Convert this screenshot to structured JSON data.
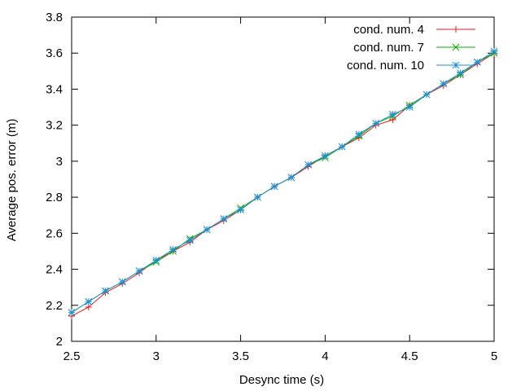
{
  "chart_data": {
    "type": "line",
    "title": "",
    "xlabel": "Desync time (s)",
    "ylabel": "Average pos. error (m)",
    "xlim": [
      2.5,
      5
    ],
    "ylim": [
      2,
      3.8
    ],
    "xticks": [
      2.5,
      3,
      3.5,
      4,
      4.5,
      5
    ],
    "yticks": [
      2,
      2.2,
      2.4,
      2.6,
      2.8,
      3,
      3.2,
      3.4,
      3.6,
      3.8
    ],
    "xtick_labels": [
      "2.5",
      "3",
      "3.5",
      "4",
      "4.5",
      "5"
    ],
    "ytick_labels": [
      "2",
      "2.2",
      "2.4",
      "2.6",
      "2.8",
      "3",
      "3.2",
      "3.4",
      "3.6",
      "3.8"
    ],
    "grid": false,
    "legend_position": "top-right",
    "x": [
      2.5,
      2.6,
      2.7,
      2.8,
      2.9,
      3.0,
      3.1,
      3.2,
      3.3,
      3.4,
      3.5,
      3.6,
      3.7,
      3.8,
      3.9,
      4.0,
      4.1,
      4.2,
      4.3,
      4.4,
      4.5,
      4.6,
      4.7,
      4.8,
      4.9,
      5.0
    ],
    "series": [
      {
        "name": "cond. num. 4",
        "color": "#e41a1c",
        "marker": "plus",
        "values": [
          2.14,
          2.19,
          2.27,
          2.32,
          2.38,
          2.45,
          2.5,
          2.55,
          2.62,
          2.67,
          2.73,
          2.8,
          2.86,
          2.91,
          2.97,
          3.03,
          3.08,
          3.13,
          3.2,
          3.23,
          3.31,
          3.37,
          3.42,
          3.48,
          3.54,
          3.6
        ]
      },
      {
        "name": "cond. num. 7",
        "color": "#00b000",
        "marker": "cross",
        "values": [
          2.16,
          2.22,
          2.28,
          2.33,
          2.39,
          2.44,
          2.5,
          2.57,
          2.62,
          2.68,
          2.74,
          2.8,
          2.86,
          2.91,
          2.98,
          3.02,
          3.08,
          3.14,
          3.21,
          3.25,
          3.31,
          3.37,
          3.43,
          3.48,
          3.55,
          3.6
        ]
      },
      {
        "name": "cond. num. 10",
        "color": "#1f8fd8",
        "marker": "star",
        "values": [
          2.16,
          2.22,
          2.28,
          2.33,
          2.39,
          2.45,
          2.51,
          2.56,
          2.62,
          2.68,
          2.73,
          2.8,
          2.86,
          2.91,
          2.98,
          3.03,
          3.08,
          3.15,
          3.21,
          3.26,
          3.3,
          3.37,
          3.43,
          3.49,
          3.55,
          3.61
        ]
      }
    ]
  }
}
